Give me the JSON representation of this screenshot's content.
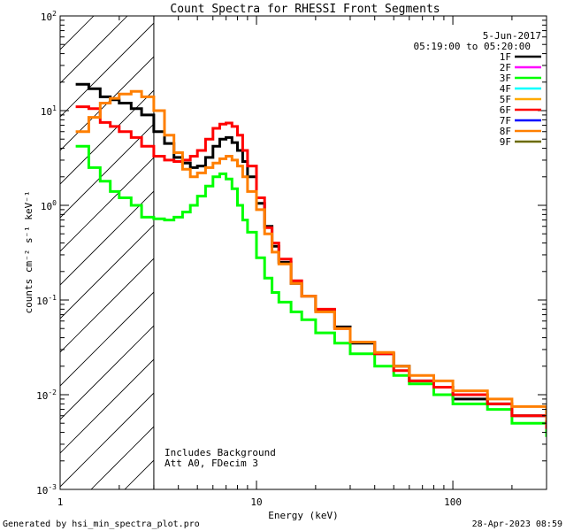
{
  "chart_data": {
    "type": "line",
    "title": "Count Spectra for RHESSI Front Segments",
    "xlabel": "Energy (keV)",
    "ylabel": "counts cm⁻² s⁻¹ keV⁻¹",
    "xscale": "log",
    "yscale": "log",
    "xlim": [
      1,
      300
    ],
    "ylim": [
      0.001,
      100
    ],
    "x_ticks": [
      {
        "value": 1,
        "label": "1"
      },
      {
        "value": 10,
        "label": "10"
      },
      {
        "value": 100,
        "label": "100"
      }
    ],
    "y_ticks": [
      {
        "value": 100,
        "base": "10",
        "exp": "2"
      },
      {
        "value": 10,
        "base": "10",
        "exp": "1"
      },
      {
        "value": 1,
        "base": "10",
        "exp": "0"
      },
      {
        "value": 0.1,
        "base": "10",
        "exp": "-1"
      },
      {
        "value": 0.01,
        "base": "10",
        "exp": "-2"
      },
      {
        "value": 0.001,
        "base": "10",
        "exp": "-3"
      }
    ],
    "date": "5-Jun-2017",
    "time_range": "05:19:00 to 05:20:00",
    "hatched_below_keV": 3,
    "annotation_lines": [
      "Includes Background",
      "Att A0, FDecim 3"
    ],
    "legend": [
      {
        "name": "1F",
        "color": "#000000"
      },
      {
        "name": "2F",
        "color": "#ff00ff"
      },
      {
        "name": "3F",
        "color": "#00ff00"
      },
      {
        "name": "4F",
        "color": "#00ffff"
      },
      {
        "name": "5F",
        "color": "#ffaa00"
      },
      {
        "name": "6F",
        "color": "#ff0000"
      },
      {
        "name": "7F",
        "color": "#0000ff"
      },
      {
        "name": "8F",
        "color": "#ff7f00"
      },
      {
        "name": "9F",
        "color": "#6b6b00"
      }
    ],
    "series": [
      {
        "name": "1F",
        "color": "#000000",
        "x": [
          1.2,
          1.4,
          1.6,
          1.8,
          2.0,
          2.3,
          2.6,
          3.0,
          3.4,
          3.8,
          4.2,
          4.6,
          5.0,
          5.5,
          6.0,
          6.5,
          7.0,
          7.5,
          8.0,
          8.5,
          9.0,
          10,
          11,
          12,
          13,
          15,
          17,
          20,
          25,
          30,
          40,
          50,
          60,
          80,
          100,
          150,
          200,
          300
        ],
        "y": [
          19,
          17,
          14,
          13,
          12,
          10.5,
          9,
          6,
          4.5,
          3.2,
          2.8,
          2.5,
          2.6,
          3.2,
          4.2,
          5.0,
          5.2,
          4.6,
          3.8,
          2.9,
          2.0,
          1.05,
          0.6,
          0.37,
          0.25,
          0.15,
          0.11,
          0.078,
          0.052,
          0.035,
          0.027,
          0.02,
          0.014,
          0.012,
          0.009,
          0.008,
          0.006,
          0.004
        ]
      },
      {
        "name": "3F",
        "color": "#00ff00",
        "x": [
          1.2,
          1.4,
          1.6,
          1.8,
          2.0,
          2.3,
          2.6,
          3.0,
          3.4,
          3.8,
          4.2,
          4.6,
          5.0,
          5.5,
          6.0,
          6.5,
          7.0,
          7.5,
          8.0,
          8.5,
          9.0,
          10,
          11,
          12,
          13,
          15,
          17,
          20,
          25,
          30,
          40,
          50,
          60,
          80,
          100,
          150,
          200,
          300
        ],
        "y": [
          4.2,
          2.5,
          1.8,
          1.4,
          1.2,
          1.0,
          0.75,
          0.72,
          0.7,
          0.75,
          0.85,
          1.0,
          1.25,
          1.6,
          2.0,
          2.15,
          1.9,
          1.5,
          1.0,
          0.7,
          0.52,
          0.28,
          0.17,
          0.12,
          0.095,
          0.075,
          0.062,
          0.045,
          0.035,
          0.027,
          0.02,
          0.016,
          0.013,
          0.01,
          0.008,
          0.007,
          0.005,
          0.0037
        ]
      },
      {
        "name": "6F",
        "color": "#ff0000",
        "x": [
          1.2,
          1.4,
          1.6,
          1.8,
          2.0,
          2.3,
          2.6,
          3.0,
          3.4,
          3.8,
          4.2,
          4.6,
          5.0,
          5.5,
          6.0,
          6.5,
          7.0,
          7.5,
          8.0,
          8.5,
          9.0,
          10,
          11,
          12,
          13,
          15,
          17,
          20,
          25,
          30,
          40,
          50,
          60,
          80,
          100,
          150,
          200,
          300
        ],
        "y": [
          11,
          10.5,
          7.5,
          6.8,
          6.0,
          5.2,
          4.2,
          3.3,
          3.0,
          2.9,
          3.0,
          3.3,
          3.8,
          5.0,
          6.5,
          7.2,
          7.4,
          6.8,
          5.5,
          3.8,
          2.6,
          1.2,
          0.58,
          0.4,
          0.27,
          0.16,
          0.11,
          0.08,
          0.05,
          0.036,
          0.027,
          0.018,
          0.014,
          0.012,
          0.01,
          0.008,
          0.006,
          0.0045
        ]
      },
      {
        "name": "8F",
        "color": "#ff7f00",
        "x": [
          1.2,
          1.4,
          1.6,
          1.8,
          2.0,
          2.3,
          2.6,
          3.0,
          3.4,
          3.8,
          4.2,
          4.6,
          5.0,
          5.5,
          6.0,
          6.5,
          7.0,
          7.5,
          8.0,
          8.5,
          9.0,
          10,
          11,
          12,
          13,
          15,
          17,
          20,
          25,
          30,
          40,
          50,
          60,
          80,
          100,
          150,
          200,
          300
        ],
        "y": [
          6.0,
          8.5,
          12,
          13.5,
          15,
          16,
          14,
          10,
          5.5,
          3.6,
          2.4,
          2.0,
          2.2,
          2.5,
          2.8,
          3.1,
          3.3,
          3.0,
          2.6,
          2.0,
          1.4,
          0.9,
          0.5,
          0.32,
          0.24,
          0.15,
          0.11,
          0.075,
          0.05,
          0.036,
          0.028,
          0.02,
          0.016,
          0.014,
          0.011,
          0.009,
          0.0075,
          0.0055
        ]
      }
    ]
  },
  "footer": {
    "generated_by": "Generated by hsi_min_spectra_plot.pro",
    "timestamp": "28-Apr-2023 08:59"
  }
}
